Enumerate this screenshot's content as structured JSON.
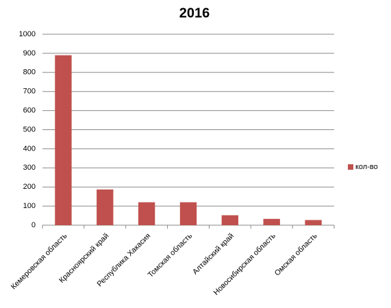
{
  "chart_data": {
    "type": "bar",
    "title": "2016",
    "categories": [
      "Кемеровская область",
      "Красноярский край",
      "Республика Хакасия",
      "Томская область",
      "Алтайский край",
      "Новосибирская область",
      "Омская область"
    ],
    "series": [
      {
        "name": "кол-во",
        "color": "#c0504d",
        "values": [
          890,
          187,
          120,
          120,
          52,
          33,
          27
        ]
      }
    ],
    "ylim": [
      0,
      1000
    ],
    "yticks": [
      0,
      100,
      200,
      300,
      400,
      500,
      600,
      700,
      800,
      900,
      1000
    ],
    "grid": true,
    "legend": "right"
  }
}
